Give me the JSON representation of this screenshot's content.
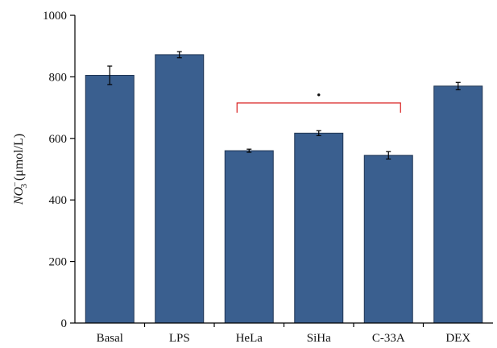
{
  "chart_data": {
    "type": "bar",
    "categories": [
      "Basal",
      "LPS",
      "HeLa",
      "SiHa",
      "C-33A",
      "DEX"
    ],
    "values": [
      805,
      872,
      560,
      617,
      545,
      770
    ],
    "errors": [
      30,
      10,
      5,
      8,
      12,
      12
    ],
    "ylabel": {
      "prefix": "NO",
      "sub": "3",
      "sup": "−",
      "unit": " (μmol/L)"
    },
    "ylim": [
      0,
      1000
    ],
    "yticks": [
      "0",
      "200",
      "400",
      "600",
      "800",
      "1000"
    ],
    "ytick_values": [
      0,
      200,
      400,
      600,
      800,
      1000
    ],
    "grid": false,
    "bar_color": "#3a5f8f",
    "significance": {
      "from_category": "HeLa",
      "to_category": "C-33A",
      "level": 715,
      "marker": "•",
      "color": "#d81e1e"
    }
  }
}
